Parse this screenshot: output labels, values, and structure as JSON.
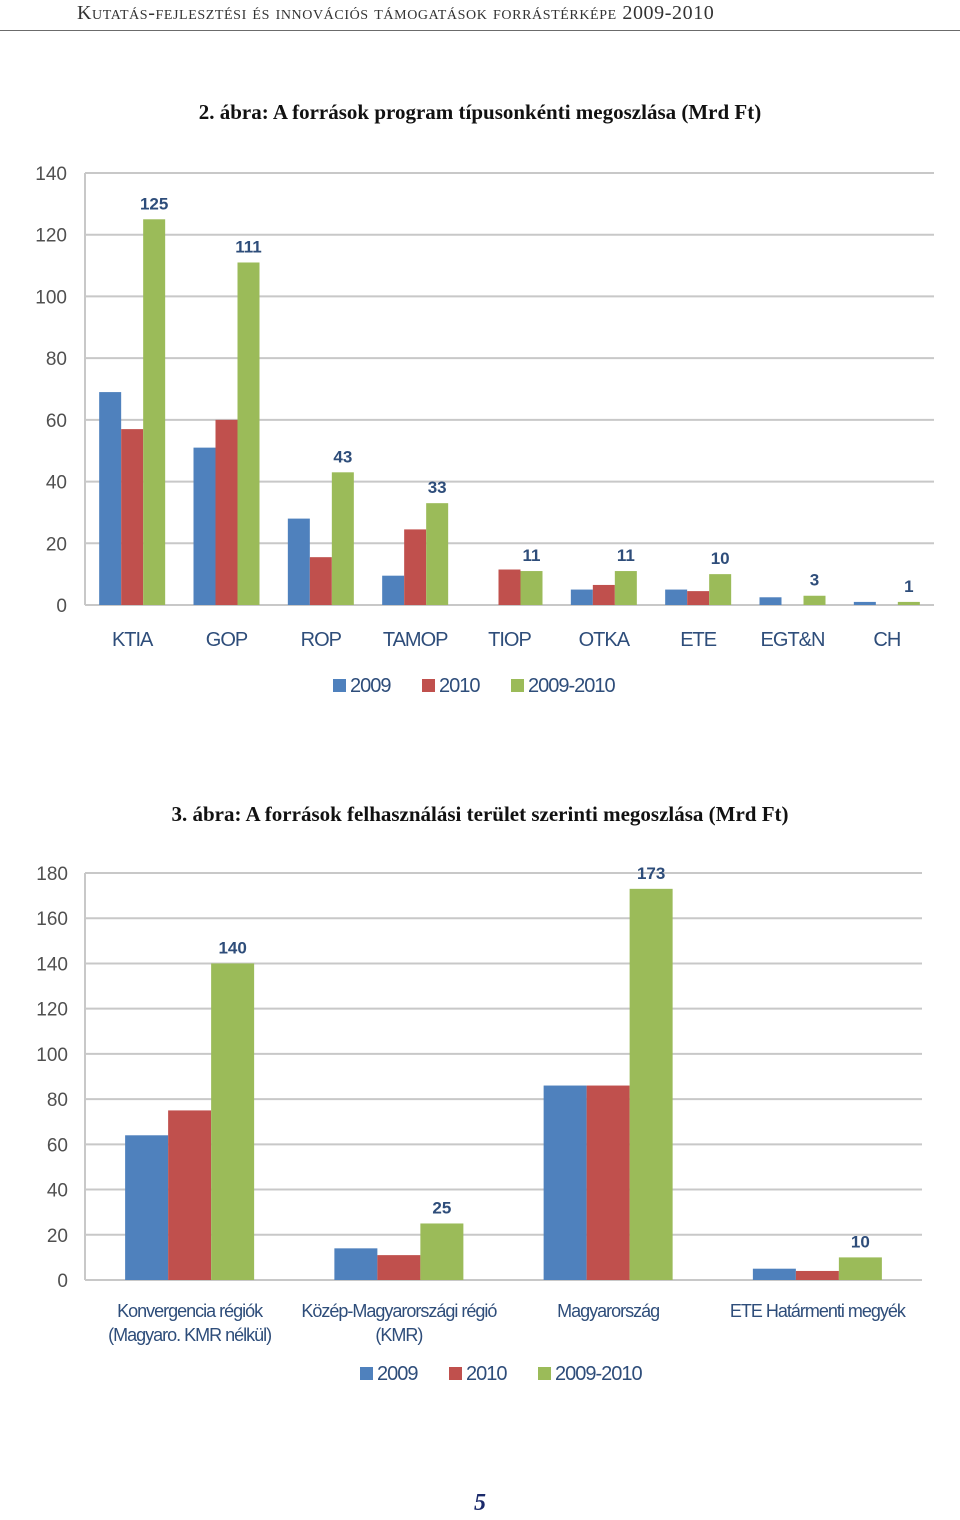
{
  "header": {
    "running_title": "Kutatás-fejlesztési és innovációs támogatások forrástérképe 2009-2010"
  },
  "page_number": "5",
  "colors": {
    "2009": "#4f81bd",
    "2010": "#c0504d",
    "2009-2010": "#9bbb59",
    "grid": "#c8c8c8",
    "label": "#2e4d7a",
    "axis_text": "#505050"
  },
  "chart_data": [
    {
      "type": "bar",
      "title": "2. ábra: A források program típusonkénti megoszlása (Mrd Ft)",
      "categories": [
        "KTIA",
        "GOP",
        "ROP",
        "TAMOP",
        "TIOP",
        "OTKA",
        "ETE",
        "EGT&N",
        "CH"
      ],
      "series": [
        {
          "name": "2009",
          "values": [
            69,
            51,
            28,
            9.5,
            0,
            5,
            5,
            2.5,
            1
          ]
        },
        {
          "name": "2010",
          "values": [
            57,
            60,
            15.5,
            24.5,
            11.5,
            6.5,
            4.5,
            0,
            0
          ]
        },
        {
          "name": "2009-2010",
          "values": [
            125,
            111,
            43,
            33,
            11,
            11,
            10,
            3,
            1
          ]
        }
      ],
      "data_labels": [
        "125",
        "111",
        "43",
        "33",
        "11",
        "11",
        "10",
        "3",
        "1"
      ],
      "ylim": [
        0,
        140
      ],
      "yticks": [
        0,
        20,
        40,
        60,
        80,
        100,
        120,
        140
      ],
      "grid": true,
      "legend": "bottom"
    },
    {
      "type": "bar",
      "title": "3. ábra: A források felhasználási terület szerinti megoszlása (Mrd Ft)",
      "categories": [
        [
          "Konvergencia régiók",
          "(Magyaro. KMR nélkül)"
        ],
        [
          "Közép-Magyarországi régió",
          "(KMR)"
        ],
        [
          "Magyarország"
        ],
        [
          "ETE Határmenti megyék"
        ]
      ],
      "series": [
        {
          "name": "2009",
          "values": [
            64,
            14,
            86,
            5
          ]
        },
        {
          "name": "2010",
          "values": [
            75,
            11,
            86,
            4
          ]
        },
        {
          "name": "2009-2010",
          "values": [
            140,
            25,
            173,
            10
          ]
        }
      ],
      "data_labels": [
        "140",
        "25",
        "173",
        "10"
      ],
      "ylim": [
        0,
        180
      ],
      "yticks": [
        0,
        20,
        40,
        60,
        80,
        100,
        120,
        140,
        160,
        180
      ],
      "grid": true,
      "legend": "bottom"
    }
  ]
}
